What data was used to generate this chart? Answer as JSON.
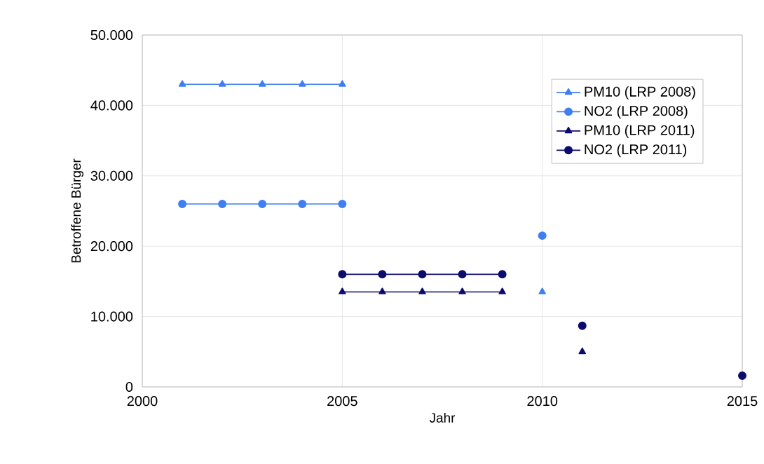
{
  "chart_data": {
    "type": "line",
    "xlabel": "Jahr",
    "ylabel": "Betroffene Bürger",
    "xlim": [
      2000,
      2015
    ],
    "xticks": [
      2000,
      2005,
      2010,
      2015
    ],
    "ylim": [
      0,
      50000
    ],
    "yticks": [
      {
        "value": 0,
        "label": "0"
      },
      {
        "value": 10000,
        "label": "10.000"
      },
      {
        "value": 20000,
        "label": "20.000"
      },
      {
        "value": 30000,
        "label": "30.000"
      },
      {
        "value": 40000,
        "label": "40.000"
      },
      {
        "value": 50000,
        "label": "50.000"
      }
    ],
    "grid": true,
    "legend": "top right",
    "line_style": "solid",
    "series": [
      {
        "name": "PM10 (LRP 2008)",
        "color": "#3f7ff0",
        "marker": "triangle",
        "x": [
          2001,
          2002,
          2003,
          2004,
          2005,
          2006,
          2010
        ],
        "values": [
          43000,
          43000,
          43000,
          43000,
          43000,
          null,
          13500
        ]
      },
      {
        "name": "NO2 (LRP 2008)",
        "color": "#3f7ff0",
        "marker": "circle",
        "x": [
          2001,
          2002,
          2003,
          2004,
          2005,
          2006,
          2010
        ],
        "values": [
          26000,
          26000,
          26000,
          26000,
          26000,
          null,
          21500
        ]
      },
      {
        "name": "PM10 (LRP 2011)",
        "color": "#0c0c6e",
        "marker": "triangle",
        "x": [
          2005,
          2006,
          2007,
          2008,
          2009,
          2010,
          2011
        ],
        "values": [
          13500,
          13500,
          13500,
          13500,
          13500,
          null,
          5000
        ]
      },
      {
        "name": "NO2 (LRP 2011)",
        "color": "#0c0c6e",
        "marker": "circle",
        "x": [
          2005,
          2006,
          2007,
          2008,
          2009,
          2010,
          2011,
          2012,
          2015
        ],
        "values": [
          16000,
          16000,
          16000,
          16000,
          16000,
          null,
          8700,
          null,
          1600
        ]
      }
    ]
  }
}
